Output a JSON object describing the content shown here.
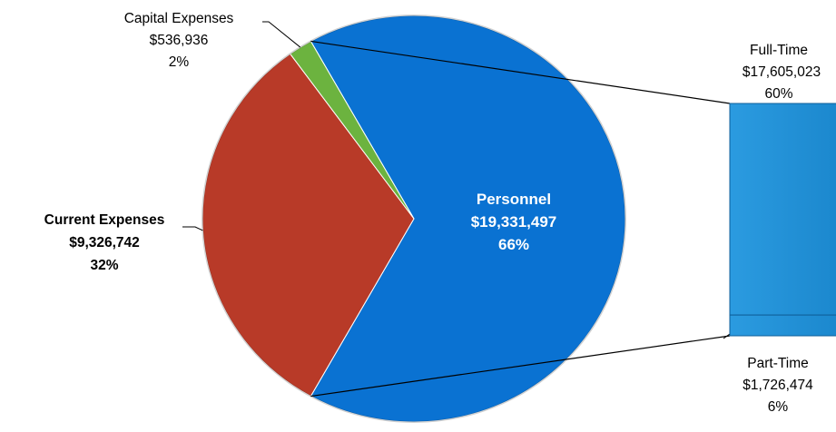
{
  "chart_data": {
    "type": "pie",
    "title": "",
    "slices": [
      {
        "name": "Personnel",
        "amount": "$19,331,497",
        "percent": "66%",
        "value": 19331497,
        "color": "#0a72d2"
      },
      {
        "name": "Current Expenses",
        "amount": "$9,326,742",
        "percent": "32%",
        "value": 9326742,
        "color": "#b83a28"
      },
      {
        "name": "Capital Expenses",
        "amount": "$536,936",
        "percent": "2%",
        "value": 536936,
        "color": "#6cb33f"
      }
    ],
    "breakdown": {
      "of": "Personnel",
      "type": "stacked-bar",
      "items": [
        {
          "name": "Full-Time",
          "amount": "$17,605,023",
          "percent": "60%",
          "value": 17605023,
          "color": "#1f8fd6"
        },
        {
          "name": "Part-Time",
          "amount": "$1,726,474",
          "percent": "6%",
          "value": 1726474,
          "color": "#1f8fd6"
        }
      ]
    }
  }
}
